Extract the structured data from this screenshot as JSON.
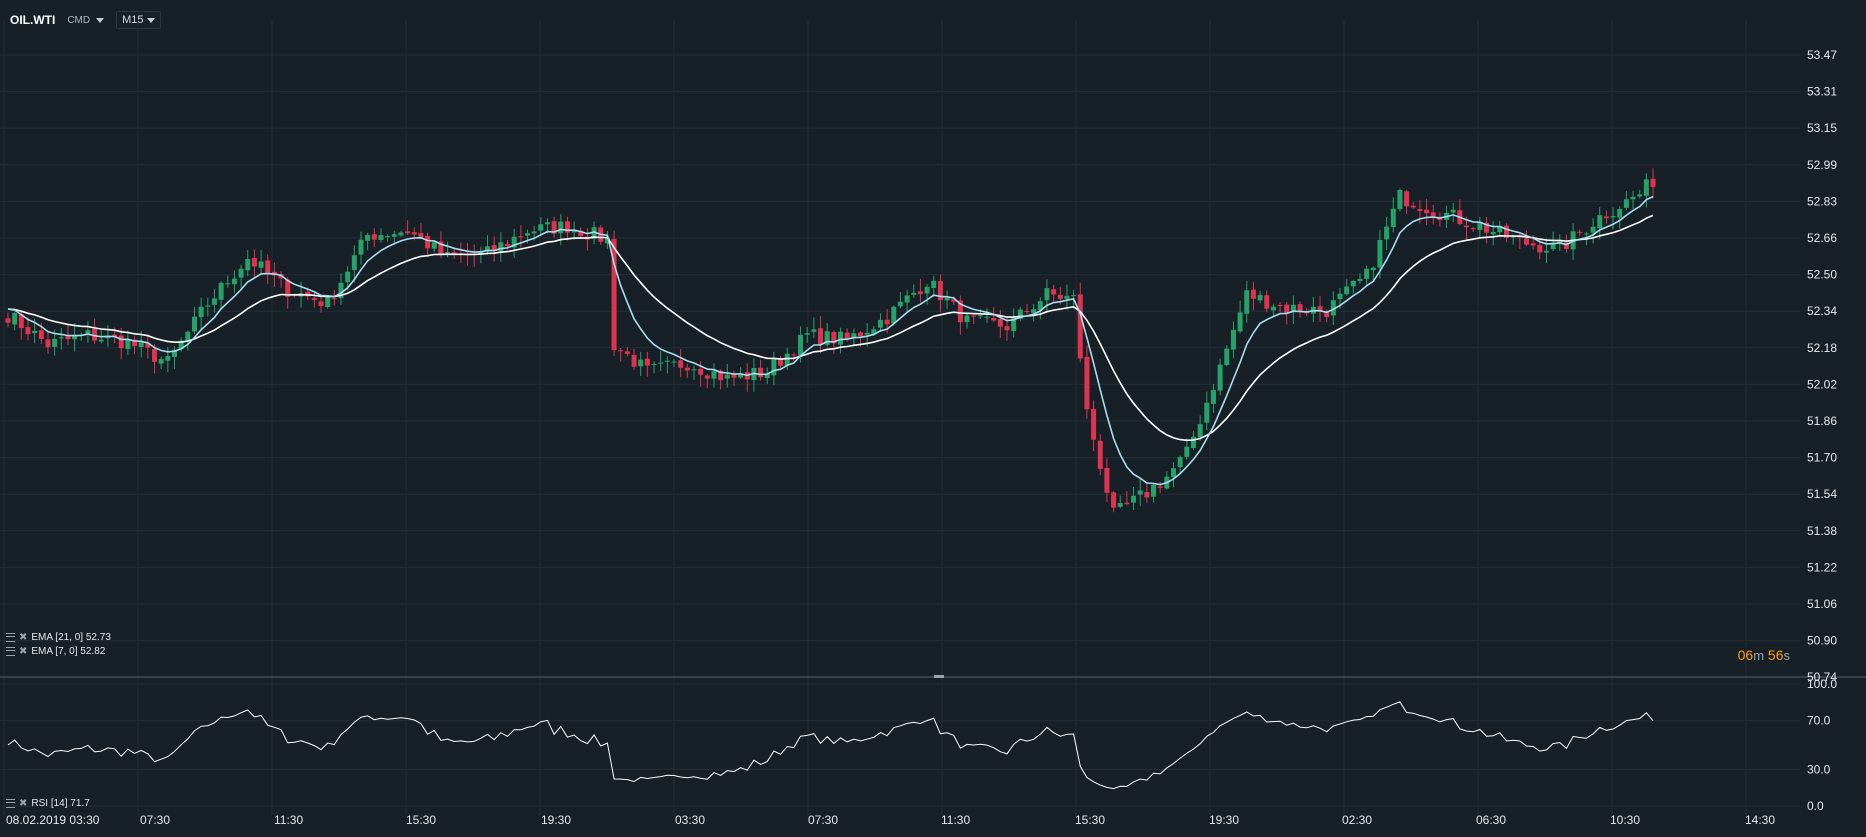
{
  "header": {
    "symbol": "OIL.WTI",
    "type": "CMD",
    "timeframe": "M15"
  },
  "countdown": {
    "minutes": "06",
    "minutes_unit": "m",
    "seconds": "56",
    "seconds_unit": "s"
  },
  "indicators": {
    "ema21": {
      "label": "EMA [21, 0] 52.73",
      "color": "#ffffff"
    },
    "ema7": {
      "label": "EMA [7, 0] 52.82",
      "color": "#a8dcee"
    },
    "rsi": {
      "label": "RSI [14] 71.7"
    }
  },
  "colors": {
    "background": "#182027",
    "grid": "#232d36",
    "up": "#26a269",
    "down": "#e0334f",
    "ema7": "#a8dcee",
    "ema21": "#ffffff",
    "rsi": "#ffffff"
  },
  "chart_data": {
    "type": "candlestick",
    "price_axis": {
      "ticks": [
        "53.47",
        "53.31",
        "53.15",
        "52.99",
        "52.83",
        "52.66",
        "52.50",
        "52.34",
        "52.18",
        "52.02",
        "51.86",
        "51.70",
        "51.54",
        "51.38",
        "51.22",
        "51.06",
        "50.90",
        "50.74"
      ],
      "ylim": [
        50.74,
        53.47
      ]
    },
    "rsi_axis": {
      "ticks": [
        "100.0",
        "70.0",
        "30.0",
        "0.0"
      ],
      "ylim": [
        0,
        100
      ]
    },
    "time_axis": {
      "ticks": [
        "08.02.2019  03:30",
        "07:30",
        "11:30",
        "15:30",
        "19:30",
        "03:30",
        "07:30",
        "11:30",
        "15:30",
        "19:30",
        "02:30",
        "06:30",
        "10:30",
        "14:30"
      ]
    },
    "close_anchors": [
      [
        0,
        52.33
      ],
      [
        6,
        52.2
      ],
      [
        12,
        52.24
      ],
      [
        18,
        52.21
      ],
      [
        24,
        52.12
      ],
      [
        30,
        52.38
      ],
      [
        36,
        52.58
      ],
      [
        42,
        52.44
      ],
      [
        48,
        52.38
      ],
      [
        54,
        52.68
      ],
      [
        60,
        52.7
      ],
      [
        66,
        52.58
      ],
      [
        72,
        52.6
      ],
      [
        78,
        52.7
      ],
      [
        84,
        52.72
      ],
      [
        90,
        52.66
      ],
      [
        91,
        52.2
      ],
      [
        96,
        52.08
      ],
      [
        102,
        52.12
      ],
      [
        108,
        52.05
      ],
      [
        114,
        52.08
      ],
      [
        120,
        52.24
      ],
      [
        126,
        52.22
      ],
      [
        132,
        52.32
      ],
      [
        138,
        52.48
      ],
      [
        144,
        52.3
      ],
      [
        150,
        52.28
      ],
      [
        156,
        52.42
      ],
      [
        160,
        52.4
      ],
      [
        162,
        51.9
      ],
      [
        166,
        51.45
      ],
      [
        171,
        51.55
      ],
      [
        174,
        51.62
      ],
      [
        177,
        51.72
      ],
      [
        182,
        52.1
      ],
      [
        186,
        52.42
      ],
      [
        192,
        52.36
      ],
      [
        198,
        52.35
      ],
      [
        204,
        52.5
      ],
      [
        209,
        52.85
      ],
      [
        215,
        52.78
      ],
      [
        221,
        52.72
      ],
      [
        227,
        52.65
      ],
      [
        233,
        52.62
      ],
      [
        239,
        52.76
      ],
      [
        245,
        52.86
      ],
      [
        247,
        52.92
      ]
    ],
    "ema7": {
      "last": 52.82
    },
    "ema21": {
      "last": 52.73
    },
    "rsi": {
      "last": 71.7
    }
  }
}
